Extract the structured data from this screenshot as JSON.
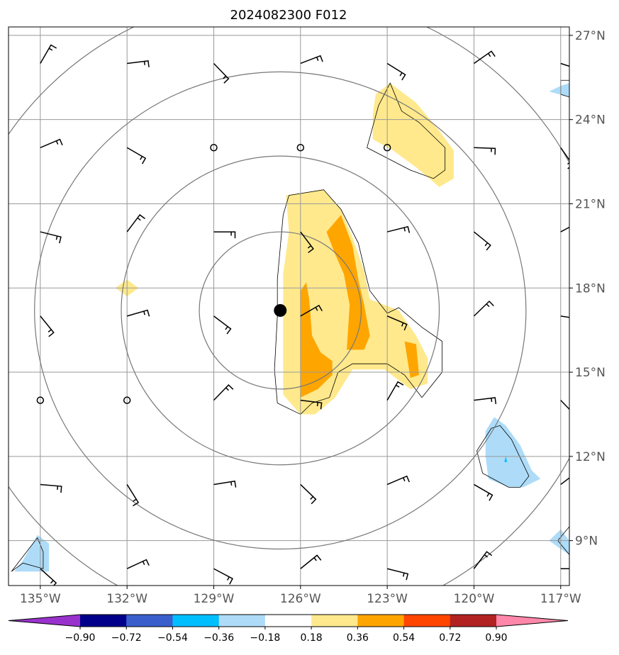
{
  "chart_data": {
    "type": "map",
    "title": "2024082300 F012",
    "projection": "plate-carree",
    "lon_range": [
      -136.1,
      -116.7
    ],
    "lat_range": [
      7.4,
      27.3
    ],
    "grid": true,
    "lon_ticks": [
      -135,
      -132,
      -129,
      -126,
      -123,
      -120,
      -117
    ],
    "lon_tick_labels": [
      "135°W",
      "132°W",
      "129°W",
      "126°W",
      "123°W",
      "120°W",
      "117°W"
    ],
    "lat_ticks": [
      9,
      12,
      15,
      18,
      21,
      24,
      27
    ],
    "lat_tick_labels": [
      "9°N",
      "12°N",
      "15°N",
      "18°N",
      "21°N",
      "24°N",
      "27°N"
    ],
    "center": {
      "lon": -126.7,
      "lat": 17.2
    },
    "range_ring_radii_deg": [
      2.8,
      5.5,
      8.5,
      11.3
    ],
    "colorbar": {
      "levels": [
        -0.9,
        -0.72,
        -0.54,
        -0.36,
        -0.18,
        0.18,
        0.36,
        0.54,
        0.72,
        0.9
      ],
      "tick_labels": [
        "−0.90",
        "−0.72",
        "−0.54",
        "−0.36",
        "−0.18",
        "0.18",
        "0.36",
        "0.54",
        "0.72",
        "0.90"
      ],
      "colors": [
        "#9932cc",
        "#00008b",
        "#3a5fcd",
        "#00bfff",
        "#aedcf8",
        "#ffffff",
        "#ffe98c",
        "#ffa500",
        "#ff4500",
        "#b22222",
        "#ff88aa"
      ],
      "extend": "both"
    },
    "shaded_regions": [
      {
        "level": 0.18,
        "color": "#ffe98c",
        "points": [
          [
            -126.5,
            21.3
          ],
          [
            -125.2,
            21.5
          ],
          [
            -124.6,
            20.8
          ],
          [
            -124.2,
            19.8
          ],
          [
            -123.8,
            18.6
          ],
          [
            -123.6,
            17.6
          ],
          [
            -122.6,
            17.2
          ],
          [
            -122.0,
            16.3
          ],
          [
            -121.6,
            15.5
          ],
          [
            -121.6,
            14.6
          ],
          [
            -122.2,
            14.4
          ],
          [
            -123.1,
            15.1
          ],
          [
            -124.2,
            15.1
          ],
          [
            -124.8,
            14.1
          ],
          [
            -125.5,
            13.5
          ],
          [
            -126.0,
            13.5
          ],
          [
            -126.6,
            14.2
          ],
          [
            -126.6,
            15.5
          ],
          [
            -126.6,
            17.3
          ],
          [
            -126.6,
            18.5
          ],
          [
            -126.4,
            20.0
          ]
        ]
      },
      {
        "level": 0.36,
        "color": "#ffa500",
        "points": [
          [
            -125.1,
            20.0
          ],
          [
            -124.6,
            20.6
          ],
          [
            -124.2,
            19.5
          ],
          [
            -124.0,
            18.3
          ],
          [
            -123.8,
            17.4
          ],
          [
            -123.6,
            16.3
          ],
          [
            -123.8,
            15.8
          ],
          [
            -124.4,
            15.8
          ],
          [
            -124.3,
            17.4
          ],
          [
            -124.5,
            18.5
          ],
          [
            -124.8,
            19.2
          ]
        ]
      },
      {
        "level": 0.36,
        "color": "#ffa500",
        "points": [
          [
            -126.0,
            17.9
          ],
          [
            -125.8,
            18.2
          ],
          [
            -125.7,
            17.6
          ],
          [
            -125.6,
            16.3
          ],
          [
            -125.3,
            15.7
          ],
          [
            -124.9,
            15.4
          ],
          [
            -124.9,
            14.9
          ],
          [
            -125.4,
            14.4
          ],
          [
            -126.0,
            14.1
          ],
          [
            -126.0,
            15.5
          ]
        ]
      },
      {
        "level": 0.36,
        "color": "#ffa500",
        "points": [
          [
            -122.4,
            16.1
          ],
          [
            -122.0,
            16.0
          ],
          [
            -121.9,
            14.9
          ],
          [
            -122.2,
            14.8
          ]
        ]
      },
      {
        "level": 0.18,
        "color": "#ffe98c",
        "points": [
          [
            -123.4,
            24.9
          ],
          [
            -122.9,
            25.3
          ],
          [
            -122.0,
            24.6
          ],
          [
            -121.2,
            23.6
          ],
          [
            -120.7,
            22.9
          ],
          [
            -120.7,
            21.9
          ],
          [
            -121.2,
            21.6
          ],
          [
            -122.0,
            22.3
          ],
          [
            -122.8,
            22.9
          ],
          [
            -123.5,
            23.3
          ],
          [
            -123.5,
            24.2
          ]
        ]
      },
      {
        "level": 0.18,
        "color": "#ffe98c",
        "points": [
          [
            -132.0,
            18.3
          ],
          [
            -131.6,
            18.0
          ],
          [
            -132.0,
            17.7
          ],
          [
            -132.4,
            18.0
          ]
        ]
      },
      {
        "level": -0.18,
        "color": "#aedcf8",
        "points": [
          [
            -119.3,
            13.4
          ],
          [
            -118.9,
            13.1
          ],
          [
            -118.4,
            12.4
          ],
          [
            -118.0,
            11.5
          ],
          [
            -117.7,
            11.2
          ],
          [
            -118.3,
            10.9
          ],
          [
            -118.8,
            10.9
          ],
          [
            -119.5,
            11.2
          ],
          [
            -119.6,
            12.0
          ],
          [
            -119.6,
            12.9
          ]
        ]
      },
      {
        "level": -0.18,
        "color": "#aedcf8",
        "points": [
          [
            -135.1,
            9.2
          ],
          [
            -134.7,
            8.9
          ],
          [
            -134.7,
            7.9
          ],
          [
            -135.2,
            7.9
          ],
          [
            -135.9,
            7.9
          ],
          [
            -135.6,
            8.3
          ]
        ]
      },
      {
        "level": -0.18,
        "color": "#aedcf8",
        "points": [
          [
            -117.0,
            9.4
          ],
          [
            -116.7,
            9.0
          ],
          [
            -116.7,
            8.5
          ],
          [
            -117.0,
            8.7
          ],
          [
            -117.4,
            9.0
          ]
        ]
      },
      {
        "level": -0.18,
        "color": "#aedcf8",
        "points": [
          [
            -117.0,
            25.2
          ],
          [
            -116.7,
            25.3
          ],
          [
            -116.7,
            24.8
          ],
          [
            -117.4,
            25.0
          ]
        ]
      },
      {
        "level": -0.36,
        "color": "#00bfff",
        "points": [
          [
            -118.9,
            12.0
          ],
          [
            -118.85,
            11.8
          ],
          [
            -118.95,
            11.8
          ]
        ]
      }
    ],
    "contour_lines": [
      {
        "points": [
          [
            -126.4,
            21.3
          ],
          [
            -125.2,
            21.5
          ],
          [
            -124.6,
            20.8
          ],
          [
            -124.0,
            19.6
          ],
          [
            -123.7,
            18.3
          ],
          [
            -123.6,
            17.9
          ],
          [
            -123.0,
            17.1
          ],
          [
            -122.6,
            17.3
          ],
          [
            -121.8,
            16.6
          ],
          [
            -121.1,
            16.1
          ],
          [
            -121.1,
            15.0
          ],
          [
            -121.8,
            14.1
          ],
          [
            -122.4,
            14.9
          ],
          [
            -123.0,
            15.3
          ],
          [
            -124.2,
            15.3
          ],
          [
            -124.7,
            15.0
          ],
          [
            -125.0,
            14.1
          ],
          [
            -125.6,
            13.9
          ],
          [
            -126.0,
            13.5
          ],
          [
            -126.8,
            13.9
          ],
          [
            -126.9,
            15.1
          ],
          [
            -126.8,
            17.0
          ],
          [
            -126.8,
            18.3
          ],
          [
            -126.6,
            20.6
          ]
        ]
      },
      {
        "points": [
          [
            -122.9,
            25.3
          ],
          [
            -122.5,
            24.3
          ],
          [
            -121.9,
            23.9
          ],
          [
            -121.0,
            23.0
          ],
          [
            -121.0,
            22.2
          ],
          [
            -121.4,
            21.9
          ],
          [
            -122.2,
            22.2
          ],
          [
            -123.7,
            23.0
          ],
          [
            -123.3,
            24.5
          ]
        ]
      },
      {
        "points": [
          [
            -119.1,
            13.1
          ],
          [
            -118.7,
            12.6
          ],
          [
            -118.1,
            11.3
          ],
          [
            -118.4,
            10.9
          ],
          [
            -118.8,
            10.9
          ],
          [
            -119.7,
            11.4
          ],
          [
            -119.9,
            12.2
          ],
          [
            -119.4,
            13.0
          ]
        ]
      },
      {
        "points": [
          [
            -135.1,
            9.1
          ],
          [
            -134.9,
            8.6
          ],
          [
            -134.9,
            8.0
          ],
          [
            -135.6,
            8.2
          ],
          [
            -136.0,
            7.9
          ]
        ]
      },
      {
        "points": [
          [
            -116.7,
            9.5
          ],
          [
            -117.1,
            9.0
          ],
          [
            -116.7,
            8.5
          ]
        ]
      },
      {
        "points": [
          [
            -116.7,
            25.4
          ],
          [
            -117.0,
            25.4
          ],
          [
            -117.0,
            24.9
          ],
          [
            -116.7,
            24.8
          ]
        ]
      }
    ],
    "wind_barbs": {
      "lons": [
        -135,
        -132,
        -129,
        -126,
        -123,
        -120,
        -117
      ],
      "lats": [
        26,
        23,
        20,
        17,
        14,
        11,
        8
      ],
      "calm": [
        [
          -129,
          23
        ],
        [
          -126,
          23
        ],
        [
          -123,
          23
        ],
        [
          -135,
          14
        ],
        [
          -132,
          14
        ]
      ]
    }
  }
}
